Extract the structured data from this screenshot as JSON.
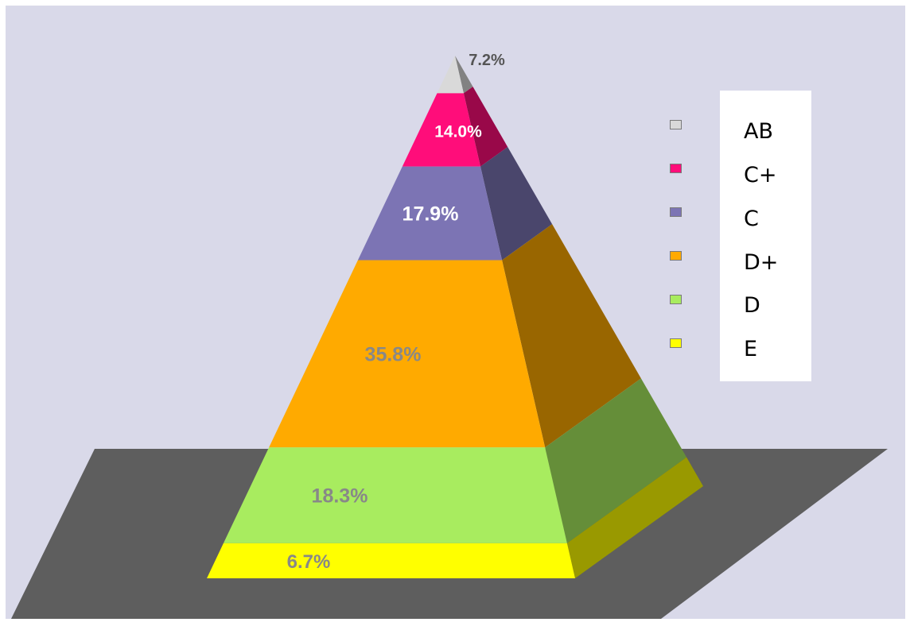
{
  "chart_data": {
    "type": "pyramid",
    "title": "",
    "series": [
      {
        "name": "AB",
        "label": "7.2%",
        "value": 7.2,
        "color": "#d9d9d9"
      },
      {
        "name": "C+",
        "label": "14.0%",
        "value": 14.0,
        "color": "#ff0d7a"
      },
      {
        "name": "C",
        "label": "17.9%",
        "value": 17.9,
        "color": "#7c74b4"
      },
      {
        "name": "D+",
        "label": "35.8%",
        "value": 35.8,
        "color": "#ffaa00"
      },
      {
        "name": "D",
        "label": "18.3%",
        "value": 18.3,
        "color": "#a8ec5f"
      },
      {
        "name": "E",
        "label": "6.7%",
        "value": 6.7,
        "color": "#ffff00"
      }
    ],
    "legend_position": "right",
    "floor_color": "#5e5e5e",
    "background_color": "#d9d9e9"
  }
}
